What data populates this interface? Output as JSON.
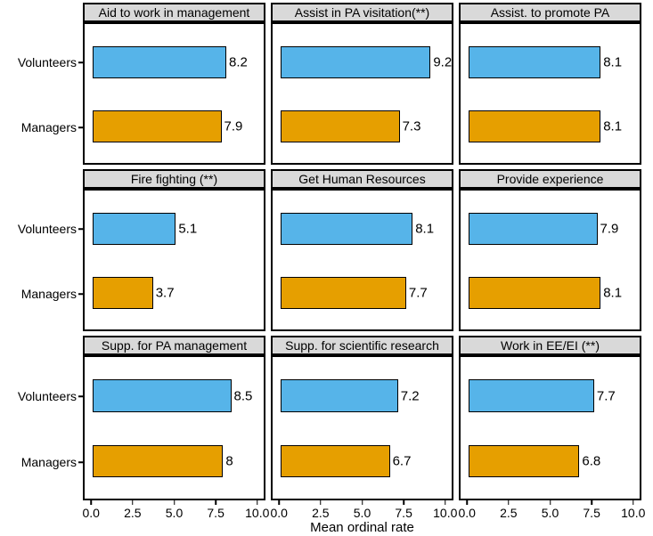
{
  "chart_data": {
    "type": "bar",
    "orientation": "horizontal",
    "facet_grid": [
      3,
      3
    ],
    "categories": [
      "Volunteers",
      "Managers"
    ],
    "series_colors": {
      "Volunteers": "#56B4E9",
      "Managers": "#E69F00"
    },
    "bar_border_color": "#000000",
    "strip_bg": "#d9d9d9",
    "xlabel": "Mean ordinal rate",
    "x_ticks": [
      "0.0",
      "2.5",
      "5.0",
      "7.5",
      "10.0"
    ],
    "x_tick_values": [
      0,
      2.5,
      5,
      7.5,
      10
    ],
    "xlim": [
      0,
      10
    ],
    "legend": "none",
    "facets": [
      {
        "title": "Aid to work in management",
        "values": [
          8.2,
          7.9
        ],
        "labels": [
          "8.2",
          "7.9"
        ]
      },
      {
        "title": "Assist in PA visitation(**)",
        "values": [
          9.2,
          7.3
        ],
        "labels": [
          "9.2",
          "7.3"
        ]
      },
      {
        "title": "Assist. to promote PA",
        "values": [
          8.1,
          8.1
        ],
        "labels": [
          "8.1",
          "8.1"
        ]
      },
      {
        "title": "Fire fighting (**)",
        "values": [
          5.1,
          3.7
        ],
        "labels": [
          "5.1",
          "3.7"
        ]
      },
      {
        "title": "Get Human Resources",
        "values": [
          8.1,
          7.7
        ],
        "labels": [
          "8.1",
          "7.7"
        ]
      },
      {
        "title": "Provide experience",
        "values": [
          7.9,
          8.1
        ],
        "labels": [
          "7.9",
          "8.1"
        ]
      },
      {
        "title": "Supp. for PA management",
        "values": [
          8.5,
          8.0
        ],
        "labels": [
          "8.5",
          "8"
        ]
      },
      {
        "title": "Supp. for scientific research",
        "values": [
          7.2,
          6.7
        ],
        "labels": [
          "7.2",
          "6.7"
        ]
      },
      {
        "title": "Work in EE/EI (**)",
        "values": [
          7.7,
          6.8
        ],
        "labels": [
          "7.7",
          "6.8"
        ]
      }
    ]
  }
}
